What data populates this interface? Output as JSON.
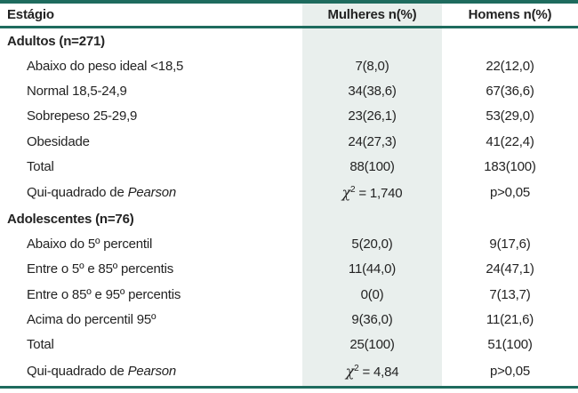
{
  "table": {
    "columns": [
      "Estágio",
      "Mulheres n(%)",
      "Homens n(%)"
    ],
    "rows": [
      {
        "type": "section",
        "label": "Adultos (n=271)",
        "mulheres": "",
        "homens": ""
      },
      {
        "type": "item",
        "label": "Abaixo do peso ideal <18,5",
        "mulheres": "7(8,0)",
        "homens": "22(12,0)"
      },
      {
        "type": "item",
        "label": "Normal 18,5-24,9",
        "mulheres": "34(38,6)",
        "homens": "67(36,6)"
      },
      {
        "type": "item",
        "label": "Sobrepeso 25-29,9",
        "mulheres": "23(26,1)",
        "homens": "53(29,0)"
      },
      {
        "type": "item",
        "label": "Obesidade",
        "mulheres": "24(27,3)",
        "homens": "41(22,4)"
      },
      {
        "type": "item",
        "label": "Total",
        "mulheres": "88(100)",
        "homens": "183(100)"
      },
      {
        "type": "stat",
        "label_prefix": "Qui-quadrado de ",
        "label_italic": "Pearson",
        "chi": "χ",
        "chi_sup": "2",
        "value": " = 1,740",
        "homens": "p>0,05"
      },
      {
        "type": "section",
        "label": "Adolescentes (n=76)",
        "mulheres": "",
        "homens": ""
      },
      {
        "type": "item",
        "label": "Abaixo do 5º percentil",
        "mulheres": "5(20,0)",
        "homens": "9(17,6)"
      },
      {
        "type": "item",
        "label": "Entre o 5º e 85º percentis",
        "mulheres": "11(44,0)",
        "homens": "24(47,1)"
      },
      {
        "type": "item",
        "label": "Entre o 85º e 95º percentis",
        "mulheres": "0(0)",
        "homens": "7(13,7)"
      },
      {
        "type": "item",
        "label": "Acima do percentil 95º",
        "mulheres": "9(36,0)",
        "homens": "11(21,6)"
      },
      {
        "type": "item",
        "label": "Total",
        "mulheres": "25(100)",
        "homens": "51(100)"
      },
      {
        "type": "stat",
        "label_prefix": "Qui-quadrado de ",
        "label_italic": "Pearson",
        "chi": "χ",
        "chi_sup": "2",
        "value": " = 4,84",
        "homens": "p>0,05"
      }
    ]
  },
  "chart_data": {
    "type": "table",
    "title": "",
    "columns": [
      "Estágio",
      "Mulheres n(%)",
      "Homens n(%)"
    ],
    "groups": [
      {
        "group": "Adultos (n=271)",
        "rows": [
          [
            "Abaixo do peso ideal <18,5",
            "7(8,0)",
            "22(12,0)"
          ],
          [
            "Normal 18,5-24,9",
            "34(38,6)",
            "67(36,6)"
          ],
          [
            "Sobrepeso 25-29,9",
            "23(26,1)",
            "53(29,0)"
          ],
          [
            "Obesidade",
            "24(27,3)",
            "41(22,4)"
          ],
          [
            "Total",
            "88(100)",
            "183(100)"
          ],
          [
            "Qui-quadrado de Pearson",
            "χ² = 1,740",
            "p>0,05"
          ]
        ]
      },
      {
        "group": "Adolescentes (n=76)",
        "rows": [
          [
            "Abaixo do 5º percentil",
            "5(20,0)",
            "9(17,6)"
          ],
          [
            "Entre o 5º e 85º percentis",
            "11(44,0)",
            "24(47,1)"
          ],
          [
            "Entre o 85º e 95º percentis",
            "0(0)",
            "7(13,7)"
          ],
          [
            "Acima do percentil 95º",
            "9(36,0)",
            "11(21,6)"
          ],
          [
            "Total",
            "25(100)",
            "51(100)"
          ],
          [
            "Qui-quadrado de Pearson",
            "χ² = 4,84",
            "p>0,05"
          ]
        ]
      }
    ]
  },
  "colors": {
    "accent_teal": "#1E6B5E",
    "shaded_column_bg": "#E9EFED",
    "text": "#232323"
  }
}
